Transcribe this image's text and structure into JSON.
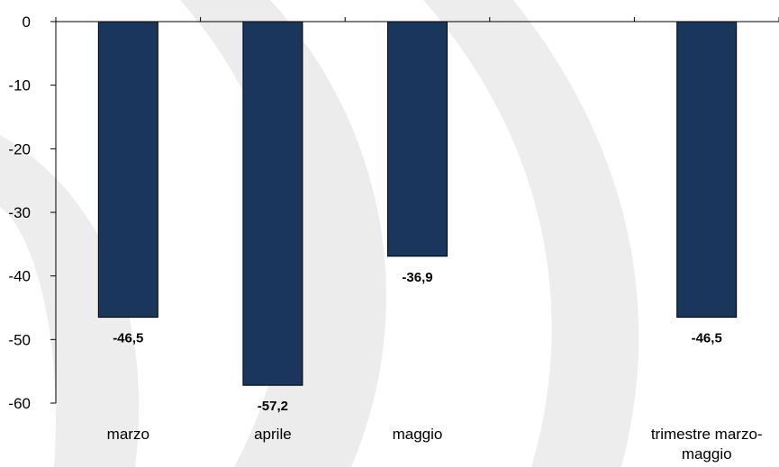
{
  "chart_data": {
    "type": "bar",
    "categories": [
      "marzo",
      "aprile",
      "maggio",
      "",
      "trimestre marzo-\nmaggio"
    ],
    "values": [
      -46.5,
      -57.2,
      -36.9,
      null,
      -46.5
    ],
    "value_labels": [
      "-46,5",
      "-57,2",
      "-36,9",
      "",
      "-46,5"
    ],
    "y_ticks": [
      "0",
      "-10",
      "-20",
      "-30",
      "-40",
      "-50",
      "-60"
    ],
    "ylim": [
      -60,
      0
    ],
    "title": "",
    "xlabel": "",
    "ylabel": "",
    "grid": false,
    "legend": "none",
    "bar_color": "#1b365d",
    "bar_edge_color": "#000000",
    "watermark_color": "#ececec"
  }
}
